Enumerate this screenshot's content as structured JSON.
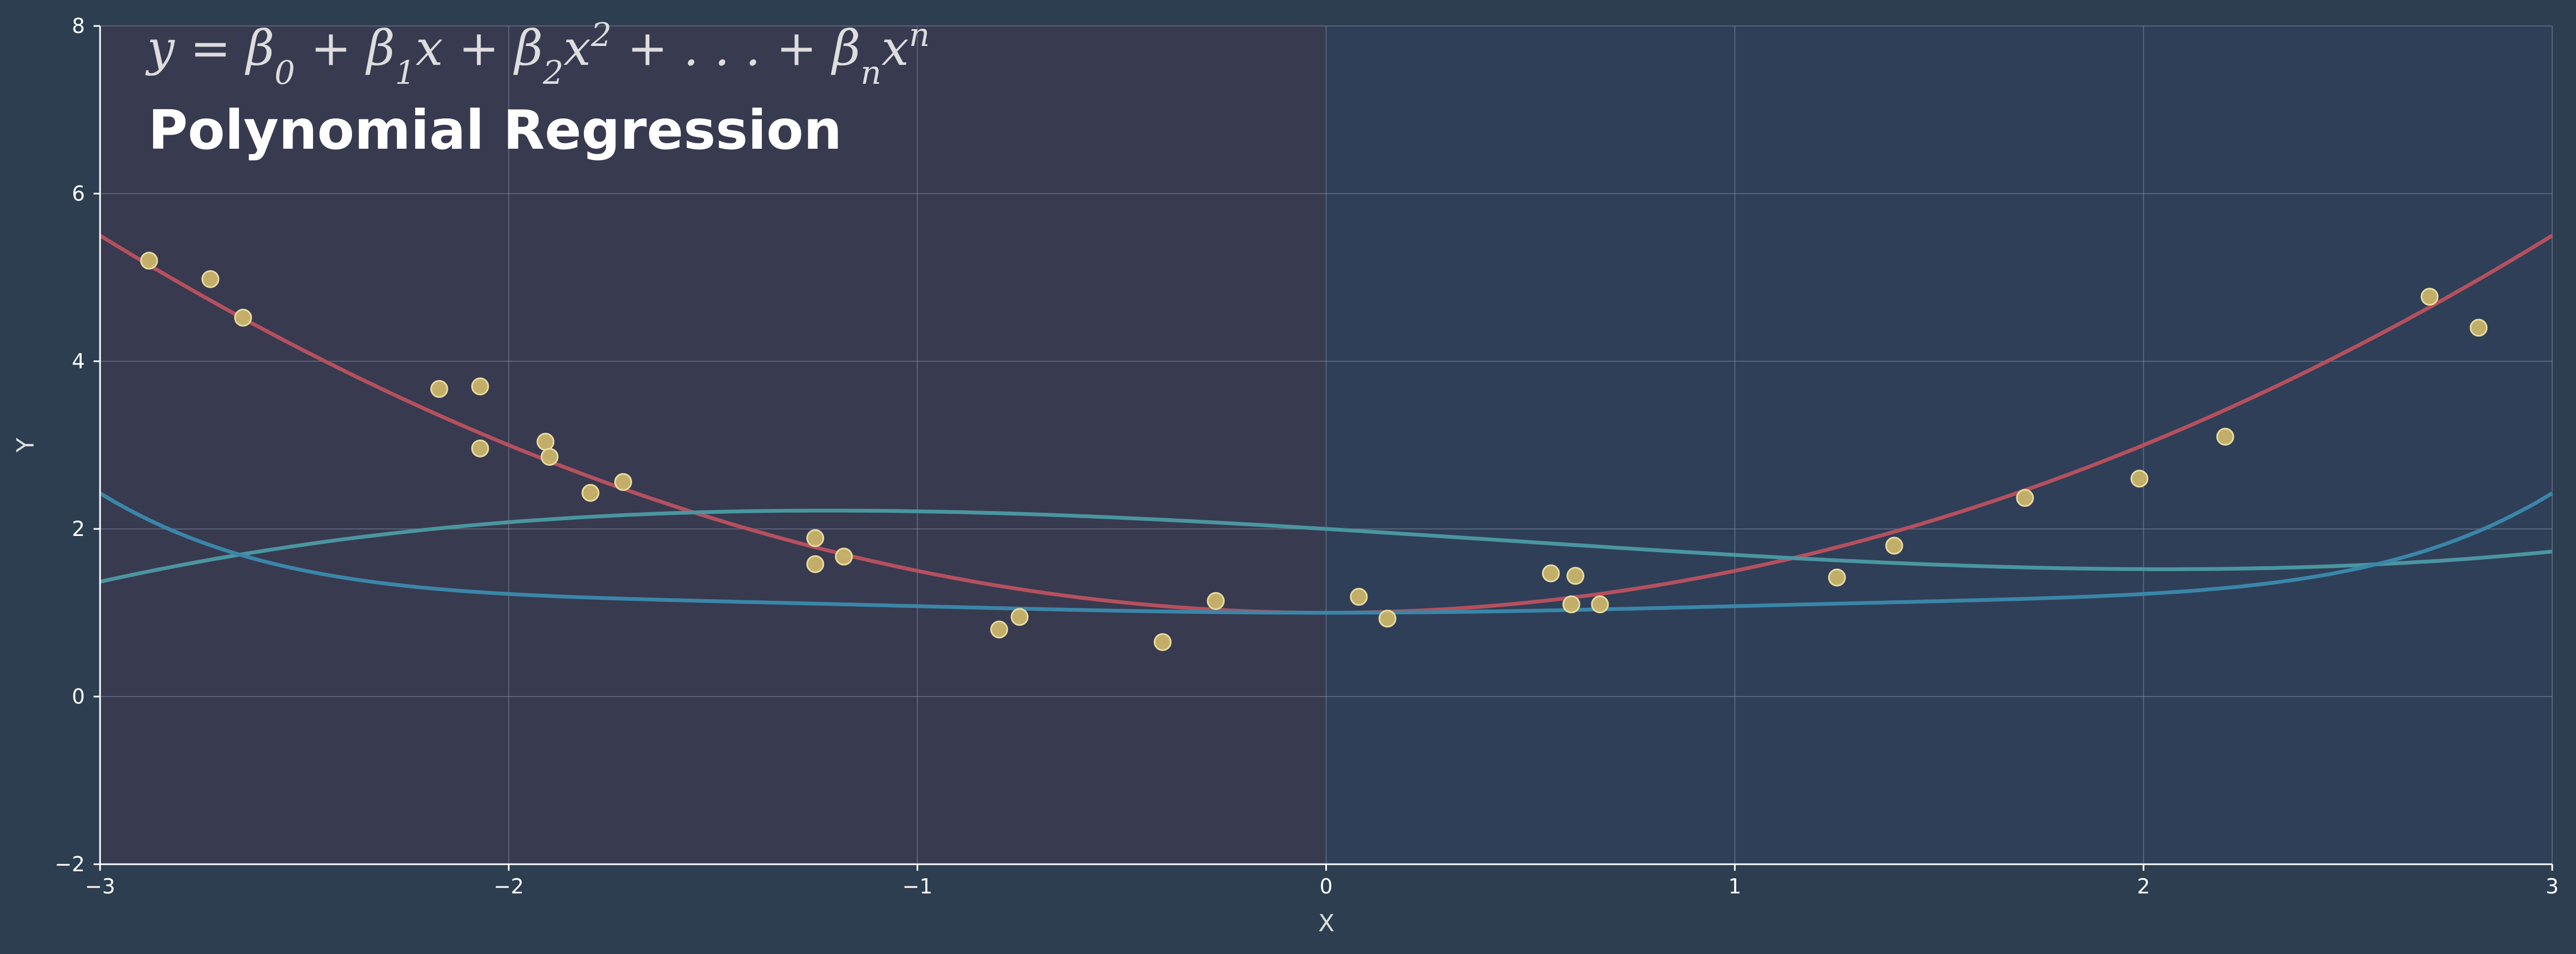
{
  "chart_data": {
    "type": "scatter",
    "title": "Polynomial Regression",
    "subtitle": "y = β0 + β1x + β2x2 + . . . + βnxn",
    "xlabel": "X",
    "ylabel": "Y",
    "xlim": [
      -3,
      3
    ],
    "ylim": [
      -2,
      8
    ],
    "xticks": [
      -3,
      -2,
      -1,
      0,
      1,
      2,
      3
    ],
    "xtick_labels": [
      "−3",
      "−2",
      "−1",
      "0",
      "1",
      "2",
      "3"
    ],
    "yticks": [
      -2,
      0,
      2,
      4,
      6,
      8
    ],
    "ytick_labels": [
      "−2",
      "0",
      "2",
      "4",
      "6",
      "8"
    ],
    "grid": true,
    "background_regions": [
      {
        "x_from": -3,
        "x_to": 0,
        "color": "#383a50"
      },
      {
        "x_from": 0,
        "x_to": 3,
        "color": "#2f3f58"
      }
    ],
    "points": {
      "color": "#c9b46a",
      "edge": "#e8dca0",
      "x": [
        -2.88,
        -2.73,
        -2.65,
        -2.17,
        -2.07,
        -2.07,
        -1.91,
        -1.9,
        -1.8,
        -1.72,
        -1.25,
        -1.25,
        -1.18,
        -0.8,
        -0.75,
        -0.4,
        -0.27,
        0.08,
        0.15,
        0.55,
        0.6,
        0.61,
        0.67,
        1.25,
        1.39,
        1.71,
        1.99,
        2.2,
        2.7,
        2.82
      ],
      "y": [
        5.2,
        4.98,
        4.52,
        3.67,
        3.7,
        2.96,
        3.04,
        2.86,
        2.43,
        2.56,
        1.89,
        1.58,
        1.67,
        0.8,
        0.95,
        0.65,
        1.14,
        1.19,
        0.93,
        1.47,
        1.1,
        1.44,
        1.1,
        1.42,
        1.8,
        2.37,
        2.6,
        3.1,
        4.77,
        4.4
      ]
    },
    "curves": [
      {
        "color": "#b5505e",
        "coefficients": [
          1,
          0,
          0.5
        ]
      },
      {
        "color": "#4a96a0",
        "coefficients": [
          2,
          -0.3,
          -0.05,
          0.04
        ]
      },
      {
        "color": "#3a86a8",
        "coefficients": [
          1,
          0,
          0.1,
          0,
          -0.025,
          0,
          0.0035
        ]
      }
    ]
  }
}
